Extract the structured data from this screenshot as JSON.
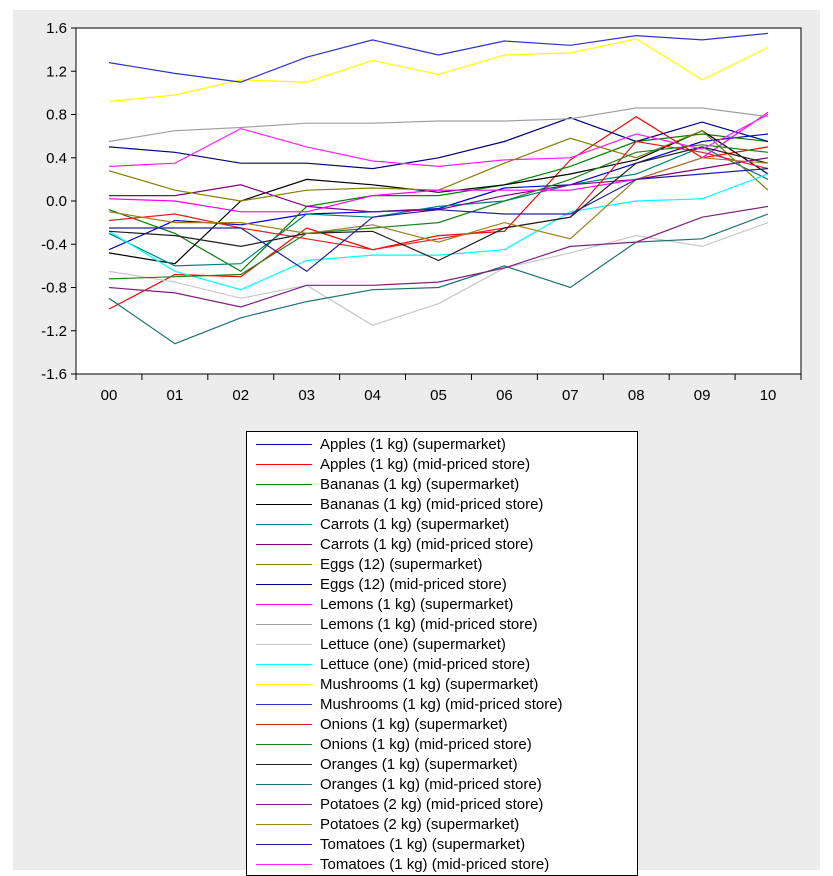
{
  "chart_data": {
    "type": "line",
    "x": [
      "00",
      "01",
      "02",
      "03",
      "04",
      "05",
      "06",
      "07",
      "08",
      "09",
      "10"
    ],
    "ylim": [
      -1.6,
      1.6
    ],
    "yticks": [
      "1.6",
      "1.2",
      "0.8",
      "0.4",
      "0.0",
      "-0.4",
      "-0.8",
      "-1.2",
      "-1.6"
    ],
    "grid": false,
    "legend_position": "bottom",
    "series": [
      {
        "name": "Apples (1 kg)  (supermarket)",
        "color": "#0000cc",
        "values": [
          -0.45,
          -0.18,
          -0.22,
          -0.12,
          -0.1,
          -0.07,
          0.12,
          0.15,
          0.35,
          0.55,
          0.62
        ]
      },
      {
        "name": "Apples (1 kg)  (mid-priced store)",
        "color": "#ff0000",
        "values": [
          -1.0,
          -0.68,
          -0.7,
          -0.25,
          -0.45,
          -0.32,
          -0.28,
          0.38,
          0.78,
          0.4,
          0.5
        ]
      },
      {
        "name": "Bananas (1 kg)  (supermarket)",
        "color": "#008000",
        "values": [
          -0.08,
          -0.3,
          -0.65,
          -0.05,
          0.05,
          0.05,
          0.15,
          0.32,
          0.55,
          0.62,
          0.55
        ]
      },
      {
        "name": "Bananas (1 kg) (mid-priced store)",
        "color": "#000000",
        "values": [
          -0.48,
          -0.58,
          0.0,
          0.2,
          0.15,
          0.08,
          0.15,
          0.25,
          0.38,
          0.65,
          0.25
        ]
      },
      {
        "name": "Carrots (1 kg)  (supermarket)",
        "color": "#008080",
        "values": [
          -0.3,
          -0.6,
          -0.58,
          -0.12,
          -0.15,
          -0.05,
          0.0,
          0.15,
          0.25,
          0.5,
          0.2
        ]
      },
      {
        "name": "Carrots (1 kg) (mid-priced store)",
        "color": "#800080",
        "values": [
          0.05,
          0.05,
          0.15,
          -0.05,
          -0.1,
          -0.08,
          0.05,
          0.15,
          0.2,
          0.3,
          0.4
        ]
      },
      {
        "name": "Eggs (12)  (supermarket)",
        "color": "#808000",
        "values": [
          0.28,
          0.1,
          0.0,
          0.1,
          0.12,
          0.1,
          0.35,
          0.58,
          0.4,
          0.65,
          0.1
        ]
      },
      {
        "name": "Eggs (12) (mid-priced store)",
        "color": "#000080",
        "values": [
          0.5,
          0.45,
          0.35,
          0.35,
          0.3,
          0.4,
          0.55,
          0.77,
          0.55,
          0.73,
          0.55
        ]
      },
      {
        "name": "Lemons (1 kg)  (supermarket)",
        "color": "#ff00ff",
        "values": [
          0.02,
          0.0,
          -0.1,
          -0.1,
          0.05,
          0.1,
          0.1,
          0.1,
          0.2,
          0.4,
          0.82
        ]
      },
      {
        "name": "Lemons (1 kg) (mid-priced store)",
        "color": "#a0a0a0",
        "values": [
          0.55,
          0.65,
          0.68,
          0.72,
          0.72,
          0.74,
          0.74,
          0.76,
          0.86,
          0.86,
          0.78
        ]
      },
      {
        "name": "Lettuce (one)  (supermarket)",
        "color": "#c8c8c8",
        "values": [
          -0.65,
          -0.75,
          -0.9,
          -0.78,
          -1.15,
          -0.95,
          -0.62,
          -0.48,
          -0.32,
          -0.42,
          -0.2
        ]
      },
      {
        "name": "Lettuce (one) (mid-priced store)",
        "color": "#00ffff",
        "values": [
          -0.28,
          -0.65,
          -0.82,
          -0.55,
          -0.5,
          -0.5,
          -0.45,
          -0.1,
          0.0,
          0.02,
          0.25
        ]
      },
      {
        "name": "Mushrooms (1 kg)  (supermarket)",
        "color": "#ffff00",
        "values": [
          0.92,
          0.98,
          1.12,
          1.1,
          1.3,
          1.17,
          1.35,
          1.37,
          1.5,
          1.12,
          1.42
        ]
      },
      {
        "name": "Mushrooms (1 kg) (mid-priced store)",
        "color": "#3030cc",
        "values": [
          1.28,
          1.18,
          1.1,
          1.33,
          1.49,
          1.35,
          1.48,
          1.44,
          1.53,
          1.49,
          1.55
        ]
      },
      {
        "name": "Onions (1 kg)  (supermarket)",
        "color": "#e02020",
        "values": [
          -0.18,
          -0.12,
          -0.25,
          -0.35,
          -0.45,
          -0.35,
          -0.25,
          -0.15,
          0.55,
          0.45,
          0.3
        ]
      },
      {
        "name": "Onions (1 kg) (mid-priced store)",
        "color": "#208020",
        "values": [
          -0.72,
          -0.7,
          -0.68,
          -0.3,
          -0.25,
          -0.2,
          0.0,
          0.2,
          0.45,
          0.52,
          0.45
        ]
      },
      {
        "name": "Oranges (1 kg)  (supermarket)",
        "color": "#202020",
        "values": [
          -0.28,
          -0.32,
          -0.42,
          -0.3,
          -0.28,
          -0.55,
          -0.25,
          -0.15,
          0.35,
          0.5,
          0.35
        ]
      },
      {
        "name": "Oranges (1 kg) (mid-priced store)",
        "color": "#207070",
        "values": [
          -0.9,
          -1.32,
          -1.08,
          -0.93,
          -0.82,
          -0.8,
          -0.6,
          -0.8,
          -0.38,
          -0.35,
          -0.12
        ]
      },
      {
        "name": "Potatoes (2 kg)  (mid-priced store)",
        "color": "#802080",
        "values": [
          -0.8,
          -0.85,
          -0.98,
          -0.78,
          -0.78,
          -0.75,
          -0.62,
          -0.42,
          -0.38,
          -0.15,
          -0.05
        ]
      },
      {
        "name": "Potatoes (2 kg)  (supermarket)",
        "color": "#a08020",
        "values": [
          -0.1,
          -0.2,
          -0.2,
          -0.3,
          -0.22,
          -0.38,
          -0.2,
          -0.35,
          0.2,
          0.4,
          0.35
        ]
      },
      {
        "name": "Tomatoes (1 kg)  (supermarket)",
        "color": "#2020a0",
        "values": [
          -0.25,
          -0.25,
          -0.25,
          -0.65,
          -0.15,
          -0.08,
          -0.12,
          -0.12,
          0.2,
          0.25,
          0.3
        ]
      },
      {
        "name": "Tomatoes (1 kg) (mid-priced store)",
        "color": "#ff20ff",
        "values": [
          0.32,
          0.35,
          0.67,
          0.5,
          0.37,
          0.32,
          0.38,
          0.4,
          0.62,
          0.48,
          0.8
        ]
      }
    ]
  }
}
